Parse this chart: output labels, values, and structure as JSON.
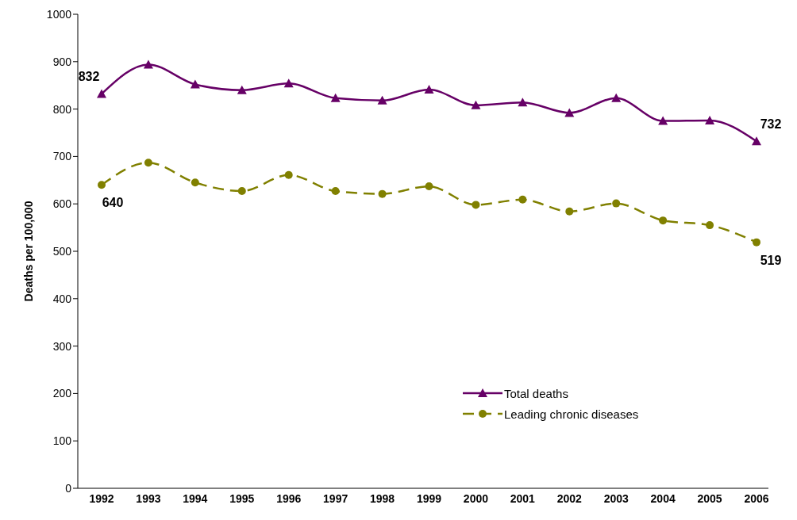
{
  "chart_data": {
    "type": "line",
    "ylabel": "Deaths per 100,000",
    "categories": [
      "1992",
      "1993",
      "1994",
      "1995",
      "1996",
      "1997",
      "1998",
      "1999",
      "2000",
      "2001",
      "2002",
      "2003",
      "2004",
      "2005",
      "2006"
    ],
    "series": [
      {
        "name": "Total deaths",
        "color": "#660066",
        "marker": "triangle",
        "line_style": "solid",
        "values": [
          832,
          894,
          852,
          840,
          854,
          823,
          818,
          841,
          808,
          814,
          792,
          823,
          775,
          776,
          732
        ],
        "value_labels": [
          "832",
          null,
          null,
          null,
          null,
          null,
          null,
          null,
          null,
          null,
          null,
          null,
          null,
          null,
          "732"
        ]
      },
      {
        "name": "Leading chronic diseases",
        "color": "#808000",
        "marker": "circle",
        "line_style": "dashed",
        "values": [
          640,
          687,
          645,
          627,
          661,
          627,
          621,
          637,
          598,
          609,
          584,
          601,
          565,
          555,
          519
        ],
        "value_labels": [
          "640",
          null,
          null,
          null,
          null,
          null,
          null,
          null,
          null,
          null,
          null,
          null,
          null,
          null,
          "519"
        ]
      }
    ],
    "ylim": [
      0,
      1000
    ],
    "yticks": [
      0,
      100,
      200,
      300,
      400,
      500,
      600,
      700,
      800,
      900,
      1000
    ],
    "grid": false,
    "legend": "bottom right"
  }
}
